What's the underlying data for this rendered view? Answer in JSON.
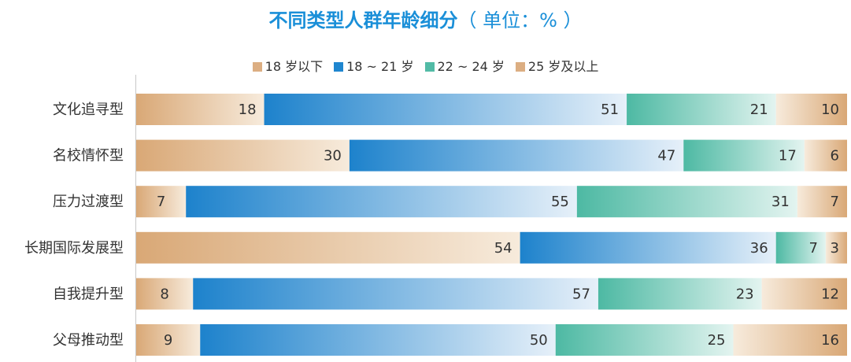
{
  "title": "不同类型人群年龄细分",
  "unit": "（ 单位：% ）",
  "colors": {
    "title": "#1a8fd8",
    "age_18_below": "#dcae82",
    "age_18_21": "#1f86cf",
    "age_22_24": "#52bba6",
    "age_25_up": "#dcae82"
  },
  "chart_data": {
    "type": "bar",
    "orientation": "horizontal",
    "stacked": true,
    "normalized_percent": true,
    "categories": [
      "文化追寻型",
      "名校情怀型",
      "压力过渡型",
      "长期国际发展型",
      "自我提升型",
      "父母推动型"
    ],
    "series": [
      {
        "name": "18 岁以下",
        "values": [
          18,
          30,
          7,
          54,
          8,
          9
        ]
      },
      {
        "name": "18 ~ 21 岁",
        "values": [
          51,
          47,
          55,
          36,
          57,
          50
        ]
      },
      {
        "name": "22 ~ 24 岁",
        "values": [
          21,
          17,
          31,
          7,
          23,
          25
        ]
      },
      {
        "name": "25 岁及以上",
        "values": [
          10,
          6,
          7,
          3,
          12,
          16
        ]
      }
    ],
    "xlim": [
      0,
      100
    ],
    "legend_position": "top",
    "grid": false
  }
}
